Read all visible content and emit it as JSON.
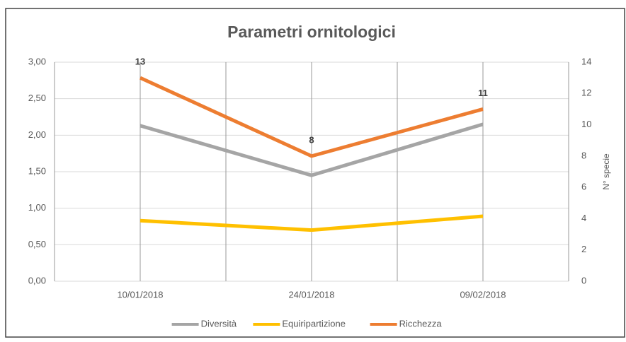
{
  "chart_data": {
    "type": "line",
    "title": "Parametri ornitologici",
    "categories": [
      "10/01/2018",
      "24/01/2018",
      "09/02/2018"
    ],
    "series": [
      {
        "name": "Diversità",
        "color": "#a5a5a5",
        "values": [
          2.13,
          1.45,
          2.15
        ]
      },
      {
        "name": "Equiripartizione",
        "color": "#ffc000",
        "values": [
          0.83,
          0.7,
          0.89
        ]
      },
      {
        "name": "Ricchezza",
        "color": "#ed7d31",
        "values": [
          13,
          8,
          11
        ],
        "axis": "y2",
        "data_labels": true
      }
    ],
    "ylim": [
      0,
      3
    ],
    "yticks": [
      {
        "value": 0,
        "label": "0,00"
      },
      {
        "value": 0.5,
        "label": "0,50"
      },
      {
        "value": 1,
        "label": "1,00"
      },
      {
        "value": 1.5,
        "label": "1,50"
      },
      {
        "value": 2,
        "label": "2,00"
      },
      {
        "value": 2.5,
        "label": "2,50"
      },
      {
        "value": 3,
        "label": "3,00"
      }
    ],
    "y2lim": [
      0,
      14
    ],
    "y2ticks": [
      0,
      2,
      4,
      6,
      8,
      10,
      12,
      14
    ],
    "y2label": "N° specie",
    "grid": true,
    "legend": "bottom"
  }
}
